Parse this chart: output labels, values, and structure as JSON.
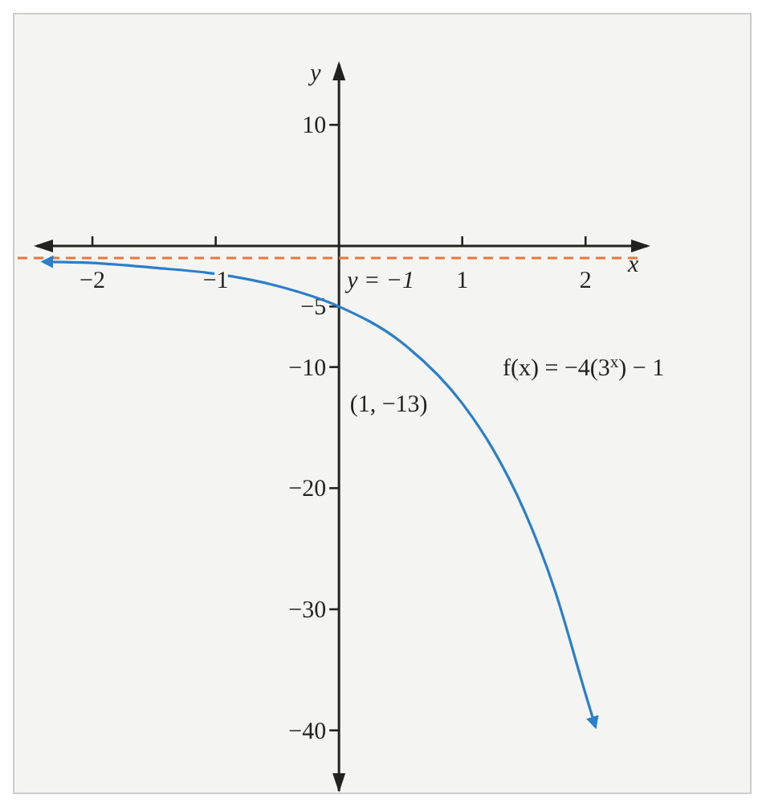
{
  "chart_data": {
    "type": "line",
    "xlabel": "x",
    "ylabel": "y",
    "x": [
      -2.4,
      -2,
      -1.5,
      -1,
      -0.5,
      0,
      0.5,
      1,
      1.25,
      1.5,
      1.75,
      2,
      2.08
    ],
    "series": [
      {
        "color": "#2a7fc8",
        "values": [
          -1.3,
          -1.4,
          -1.8,
          -2.3,
          -3.3,
          -5,
          -7.9,
          -13,
          -16.8,
          -21.8,
          -28.4,
          -37,
          -39.7
        ]
      }
    ],
    "xlim": [
      -2.45,
      2.5
    ],
    "ylim": [
      -45,
      15
    ],
    "xticks": [
      {
        "value": -2,
        "label": "−2"
      },
      {
        "value": -1,
        "label": "−1"
      },
      1,
      2
    ],
    "yticks": [
      10,
      {
        "value": -5,
        "label": "−5"
      },
      {
        "value": -10,
        "label": "−10"
      },
      {
        "value": -20,
        "label": "−20"
      },
      {
        "value": -30,
        "label": "−30"
      },
      {
        "value": -40,
        "label": "−40"
      }
    ],
    "ref_lines": [
      {
        "axis": "y",
        "value": -1,
        "label": "y = −1",
        "color": "#e8773a",
        "line_style": "dashed"
      }
    ],
    "annotations": [
      "f(x) = −4(3$^{x}$) − 1",
      {
        "text": "(1, −13)",
        "x": 1,
        "y": -13
      }
    ],
    "grid": false,
    "marker": "none",
    "line_style": "solid"
  }
}
